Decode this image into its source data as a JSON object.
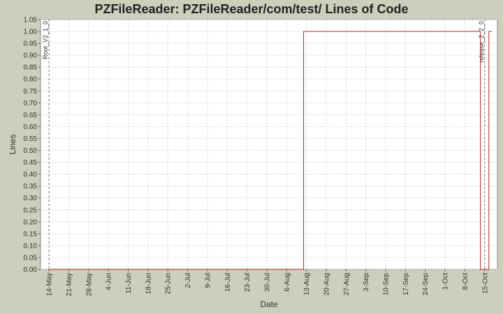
{
  "chart_data": {
    "type": "line",
    "title": "PZFileReader: PZFileReader/com/test/ Lines of Code",
    "xlabel": "Date",
    "ylabel": "Lines",
    "xlim": [
      -3,
      158.5
    ],
    "xticks": [
      {
        "value": 0,
        "label": "14-May"
      },
      {
        "value": 7,
        "label": "21-May"
      },
      {
        "value": 14,
        "label": "28-May"
      },
      {
        "value": 21,
        "label": "4-Jun"
      },
      {
        "value": 28,
        "label": "11-Jun"
      },
      {
        "value": 35,
        "label": "18-Jun"
      },
      {
        "value": 42,
        "label": "25-Jun"
      },
      {
        "value": 49,
        "label": "2-Jul"
      },
      {
        "value": 56,
        "label": "9-Jul"
      },
      {
        "value": 63,
        "label": "16-Jul"
      },
      {
        "value": 70,
        "label": "23-Jul"
      },
      {
        "value": 77,
        "label": "30-Jul"
      },
      {
        "value": 84,
        "label": "6-Aug"
      },
      {
        "value": 91,
        "label": "13-Aug"
      },
      {
        "value": 98,
        "label": "20-Aug"
      },
      {
        "value": 105,
        "label": "27-Aug"
      },
      {
        "value": 112,
        "label": "3-Sep"
      },
      {
        "value": 119,
        "label": "10-Sep"
      },
      {
        "value": 126,
        "label": "17-Sep"
      },
      {
        "value": 133,
        "label": "24-Sep"
      },
      {
        "value": 140,
        "label": "1-Oct"
      },
      {
        "value": 147,
        "label": "8-Oct"
      },
      {
        "value": 154,
        "label": "15-Oct"
      }
    ],
    "ylim": [
      0,
      1.05
    ],
    "yticks": [
      {
        "value": 0,
        "label": "0.00"
      },
      0.05,
      {
        "value": 0.1,
        "label": "0.10"
      },
      0.15,
      {
        "value": 0.2,
        "label": "0.20"
      },
      0.25,
      {
        "value": 0.3,
        "label": "0.30"
      },
      0.35,
      {
        "value": 0.4,
        "label": "0.40"
      },
      0.45,
      {
        "value": 0.5,
        "label": "0.50"
      },
      0.55,
      {
        "value": 0.6,
        "label": "0.60"
      },
      0.65,
      {
        "value": 0.7,
        "label": "0.70"
      },
      0.75,
      {
        "value": 0.8,
        "label": "0.80"
      },
      0.85,
      {
        "value": 0.9,
        "label": "0.90"
      },
      0.95,
      {
        "value": 1,
        "label": "1.00"
      },
      1.05
    ],
    "grid": true,
    "series": [
      {
        "color": "#b22222",
        "x": [
          0,
          90,
          90,
          152.5,
          152.5,
          155.5,
          155.5,
          156.5
        ],
        "values": [
          0,
          0,
          1,
          1,
          0,
          0,
          1,
          1
        ]
      }
    ],
    "markers": [
      {
        "label": "Root_V2_1_0",
        "x": 0
      },
      {
        "label": "release_2_2_0",
        "x": 154
      }
    ]
  }
}
